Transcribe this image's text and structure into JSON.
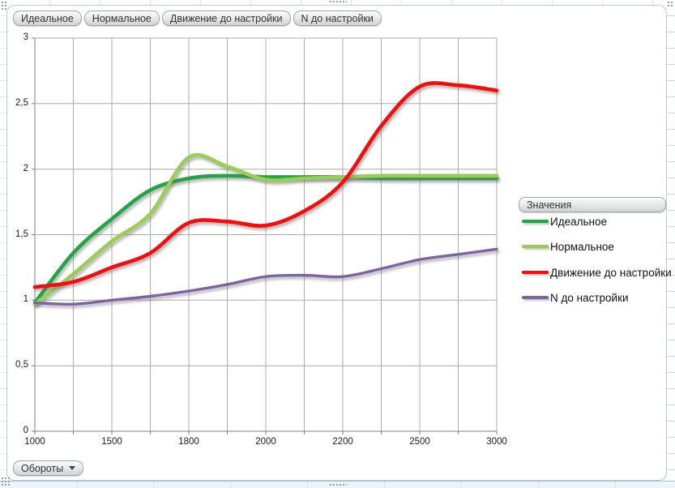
{
  "pivot_chart": {
    "series_field_buttons": [
      "Идеальное",
      "Нормальное",
      "Движение до настройки",
      "N до настройки"
    ],
    "legend_field_button": "Значения",
    "axis_field_button": "Обороты"
  },
  "chart_data": {
    "type": "line",
    "title": "",
    "xlabel": "Обороты",
    "ylabel": "",
    "grid": true,
    "legend": {
      "title": "Значения",
      "position": "right"
    },
    "x_axis": {
      "tick_labels": [
        "1000",
        "1500",
        "1800",
        "2000",
        "2200",
        "2500",
        "3000"
      ],
      "gridline_count": 13,
      "labels_every_n_gridlines": 2,
      "note": "category axis; labels shown on every 2nd of 13 gridlines"
    },
    "y_axis": {
      "min": 0,
      "max": 3,
      "step": 0.5,
      "tick_labels": [
        "0",
        "0,5",
        "1",
        "1,5",
        "2",
        "2,5",
        "3"
      ],
      "decimal_separator": ","
    },
    "series": [
      {
        "key": "ideal",
        "name": "Идеальное",
        "color": "#22a644",
        "width": 4.6,
        "values": [
          0.98,
          1.36,
          1.62,
          1.84,
          1.93,
          1.95,
          1.94,
          1.94,
          1.94,
          1.93,
          1.93,
          1.93,
          1.93
        ]
      },
      {
        "key": "normal",
        "name": "Нормальное",
        "color": "#98ce53",
        "width": 4.6,
        "values": [
          0.97,
          1.2,
          1.45,
          1.66,
          2.09,
          2.02,
          1.92,
          1.93,
          1.94,
          1.95,
          1.95,
          1.95,
          1.95
        ]
      },
      {
        "key": "movement-before-tuning",
        "name": "Движение  до настройки",
        "color": "#fa0a0a",
        "width": 4.6,
        "values": [
          1.1,
          1.14,
          1.25,
          1.36,
          1.59,
          1.6,
          1.57,
          1.68,
          1.9,
          2.33,
          2.63,
          2.64,
          2.6
        ]
      },
      {
        "key": "n-before-tuning",
        "name": "N до настройки",
        "color": "#7d63a5",
        "width": 3.4,
        "values": [
          0.98,
          0.97,
          1.0,
          1.03,
          1.07,
          1.12,
          1.18,
          1.19,
          1.18,
          1.24,
          1.31,
          1.35,
          1.39
        ]
      }
    ],
    "colors": {
      "gridline": "#ababab",
      "axis": "#7f7f7f",
      "tick_text": "#1a1a1a"
    }
  }
}
